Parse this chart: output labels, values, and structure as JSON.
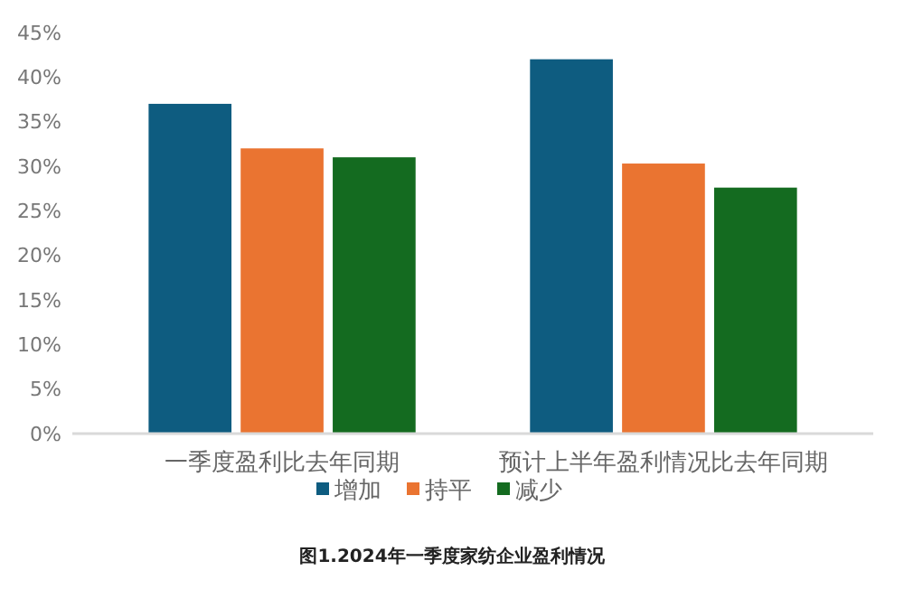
{
  "chart_data": {
    "type": "bar",
    "title": "图1.2024年一季度家纺企业盈利情况",
    "categories": [
      "一季度盈利比去年同期",
      "预计上半年盈利情况比去年同期"
    ],
    "series": [
      {
        "name": "增加",
        "color": "#0e5c80",
        "values": [
          37,
          42
        ]
      },
      {
        "name": "持平",
        "color": "#ea7431",
        "values": [
          32,
          30.3
        ]
      },
      {
        "name": "减少",
        "color": "#146b20",
        "values": [
          31,
          27.6
        ]
      }
    ],
    "ylim": [
      0,
      45
    ],
    "yticks": [
      {
        "value": 0,
        "label": "0%"
      },
      {
        "value": 5,
        "label": "5%"
      },
      {
        "value": 10,
        "label": "10%"
      },
      {
        "value": 15,
        "label": "15%"
      },
      {
        "value": 20,
        "label": "20%"
      },
      {
        "value": 25,
        "label": "25%"
      },
      {
        "value": 30,
        "label": "30%"
      },
      {
        "value": 35,
        "label": "35%"
      },
      {
        "value": 40,
        "label": "40%"
      },
      {
        "value": 45,
        "label": "45%"
      }
    ],
    "grid": false,
    "legend": "bottom"
  }
}
